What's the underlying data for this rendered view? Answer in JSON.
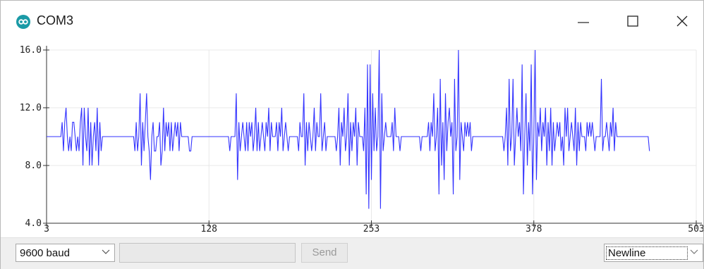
{
  "window": {
    "title": "COM3",
    "icon": "arduino-infinity-icon"
  },
  "controls": {
    "minimize_icon": "minimize-icon",
    "maximize_icon": "maximize-icon",
    "close_icon": "close-icon"
  },
  "bottom_bar": {
    "baud_rate": "9600 baud",
    "send_label": "Send",
    "send_input_value": "",
    "line_ending": "Newline"
  },
  "colors": {
    "series": "#3333ff",
    "grid": "#e8e8e8",
    "axis": "#333333",
    "app_icon": "#1a9aa6"
  },
  "chart_data": {
    "type": "line",
    "title": "",
    "xlabel": "",
    "ylabel": "",
    "xlim": [
      3,
      503
    ],
    "ylim": [
      4.0,
      16.0
    ],
    "x_ticks": [
      "3",
      "128",
      "253",
      "378",
      "503"
    ],
    "y_ticks": [
      "4.0",
      "8.0",
      "12.0",
      "16.0"
    ],
    "grid": true,
    "legend": "none",
    "series": [
      {
        "x_start": 3,
        "x_step": 1,
        "values": [
          10,
          10,
          10,
          10,
          10,
          10,
          10,
          10,
          10,
          10,
          10,
          10,
          11,
          9,
          11,
          12,
          10,
          9,
          10,
          9,
          11,
          11,
          10,
          9,
          10,
          9,
          11,
          12,
          8,
          12,
          10,
          9,
          12,
          8,
          11,
          8,
          10,
          11,
          9,
          12,
          8,
          11,
          9,
          10,
          10,
          10,
          10,
          10,
          10,
          10,
          10,
          10,
          10,
          10,
          10,
          10,
          10,
          10,
          10,
          10,
          10,
          10,
          10,
          10,
          10,
          10,
          10,
          10,
          9,
          11,
          9,
          10,
          13,
          8,
          11,
          9,
          11,
          13,
          10,
          9,
          7,
          10,
          11,
          9,
          9,
          10,
          10,
          11,
          8,
          9,
          12,
          9,
          11,
          10,
          11,
          9,
          11,
          9,
          10,
          11,
          10,
          11,
          9,
          11,
          10,
          10,
          10,
          10,
          10,
          10,
          9,
          9,
          10,
          10,
          10,
          10,
          10,
          10,
          10,
          10,
          10,
          10,
          10,
          10,
          10,
          10,
          10,
          10,
          10,
          10,
          10,
          10,
          10,
          10,
          10,
          10,
          10,
          10,
          10,
          10,
          10,
          9,
          10,
          10,
          10,
          10,
          13,
          7,
          11,
          9,
          10,
          11,
          10,
          9,
          11,
          9,
          11,
          10,
          11,
          9,
          10,
          12,
          9,
          11,
          9,
          10,
          11,
          10,
          9,
          11,
          10,
          12,
          9,
          11,
          10,
          10,
          10,
          11,
          9,
          11,
          10,
          12,
          9,
          10,
          11,
          10,
          9,
          10,
          10,
          10,
          10,
          10,
          10,
          10,
          9,
          11,
          10,
          10,
          13,
          8,
          11,
          9,
          11,
          10,
          9,
          10,
          12,
          9,
          11,
          10,
          10,
          13,
          9,
          10,
          11,
          9,
          10,
          10,
          10,
          10,
          10,
          10,
          10,
          9,
          10,
          12,
          8,
          11,
          10,
          12,
          9,
          10,
          13,
          8,
          11,
          9,
          11,
          10,
          12,
          8,
          11,
          10,
          10,
          10,
          9,
          12,
          6,
          15,
          5,
          15,
          7,
          13,
          9,
          12,
          9,
          10,
          16,
          5,
          13,
          9,
          10,
          11,
          10,
          10,
          10,
          10,
          11,
          9,
          12,
          10,
          10,
          10,
          9,
          10,
          10,
          10,
          10,
          10,
          10,
          10,
          10,
          10,
          10,
          10,
          10,
          10,
          10,
          10,
          9,
          10,
          10,
          10,
          10,
          10,
          11,
          9,
          11,
          10,
          13,
          9,
          10,
          12,
          6,
          14,
          8,
          11,
          7,
          13,
          9,
          11,
          12,
          10,
          11,
          6,
          14,
          9,
          10,
          16,
          7,
          11,
          10,
          9,
          11,
          10,
          11,
          10,
          11,
          9,
          10,
          10,
          10,
          10,
          10,
          10,
          10,
          10,
          10,
          10,
          10,
          10,
          10,
          10,
          10,
          10,
          10,
          10,
          10,
          10,
          10,
          10,
          10,
          10,
          9,
          10,
          12,
          8,
          14,
          9,
          10,
          14,
          8,
          10,
          12,
          10,
          11,
          9,
          15,
          6,
          10,
          13,
          8,
          11,
          9,
          15,
          6,
          10,
          16,
          7,
          11,
          10,
          12,
          9,
          11,
          10,
          12,
          8,
          11,
          9,
          12,
          8,
          11,
          9,
          10,
          11,
          10,
          11,
          9,
          10,
          8,
          12,
          10,
          12,
          9,
          10,
          11,
          10,
          9,
          12,
          8,
          11,
          9,
          11,
          10,
          10,
          10,
          9,
          11,
          10,
          11,
          10,
          11,
          10,
          9,
          10,
          10,
          10,
          10,
          14,
          9,
          10,
          10,
          11,
          10,
          9,
          11,
          10,
          12,
          9,
          11,
          10,
          10,
          10,
          10,
          10,
          10,
          10,
          10,
          10,
          10,
          10,
          10,
          10,
          10,
          10,
          10,
          10,
          10,
          10,
          10,
          10,
          10,
          10,
          10,
          10,
          9
        ]
      }
    ]
  }
}
